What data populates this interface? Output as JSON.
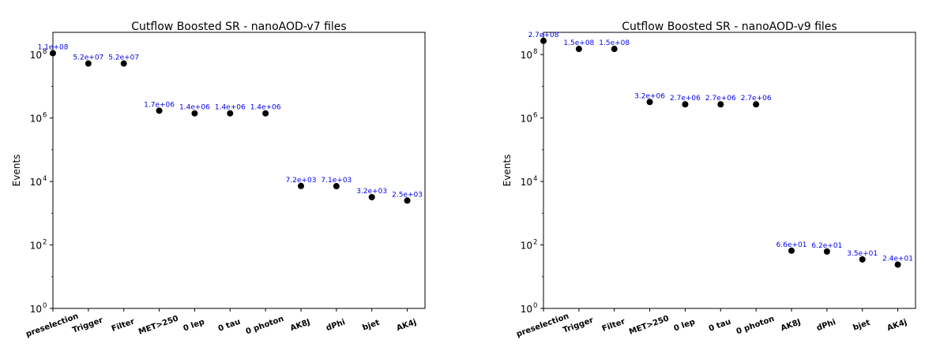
{
  "chart_data": [
    {
      "type": "scatter",
      "title": "Cutflow Boosted SR - nanoAOD-v7 files",
      "ylabel": "Events",
      "xlabel": "",
      "yscale": "log",
      "ylim": [
        1,
        500000000
      ],
      "yticks": [
        {
          "base": "10",
          "exp": "0",
          "value": 1
        },
        {
          "base": "10",
          "exp": "2",
          "value": 100
        },
        {
          "base": "10",
          "exp": "4",
          "value": 10000
        },
        {
          "base": "10",
          "exp": "6",
          "value": 1000000
        },
        {
          "base": "10",
          "exp": "8",
          "value": 100000000
        }
      ],
      "categories": [
        "preselection",
        "Trigger",
        "Filter",
        "MET>250",
        "0 lep",
        "0 tau",
        "0 photon",
        "AK8J",
        "dPhi",
        "bjet",
        "AK4j"
      ],
      "values": [
        110000000,
        52000000,
        52000000,
        1700000,
        1400000,
        1400000,
        1400000,
        7200,
        7100,
        3200,
        2500
      ],
      "value_labels": [
        "1.1e+08",
        "5.2e+07",
        "5.2e+07",
        "1.7e+06",
        "1.4e+06",
        "1.4e+06",
        "1.4e+06",
        "7.2e+03",
        "7.1e+03",
        "3.2e+03",
        "2.5e+03"
      ],
      "marker_color": "#000000",
      "label_color": "#0000ee",
      "grid": false,
      "legend": false
    },
    {
      "type": "scatter",
      "title": "Cutflow Boosted SR - nanoAOD-v9 files",
      "ylabel": "Events",
      "xlabel": "",
      "yscale": "log",
      "ylim": [
        1,
        500000000
      ],
      "yticks": [
        {
          "base": "10",
          "exp": "0",
          "value": 1
        },
        {
          "base": "10",
          "exp": "2",
          "value": 100
        },
        {
          "base": "10",
          "exp": "4",
          "value": 10000
        },
        {
          "base": "10",
          "exp": "6",
          "value": 1000000
        },
        {
          "base": "10",
          "exp": "8",
          "value": 100000000
        }
      ],
      "categories": [
        "preselection",
        "Trigger",
        "Filter",
        "MET>250",
        "0 lep",
        "0 tau",
        "0 photon",
        "AK8J",
        "dPhi",
        "bjet",
        "AK4j"
      ],
      "values": [
        270000000,
        150000000,
        150000000,
        3200000,
        2700000,
        2700000,
        2700000,
        66,
        62,
        35,
        24
      ],
      "value_labels": [
        "2.7e+08",
        "1.5e+08",
        "1.5e+08",
        "3.2e+06",
        "2.7e+06",
        "2.7e+06",
        "2.7e+06",
        "6.6e+01",
        "6.2e+01",
        "3.5e+01",
        "2.4e+01"
      ],
      "marker_color": "#000000",
      "label_color": "#0000ee",
      "grid": false,
      "legend": false
    }
  ]
}
